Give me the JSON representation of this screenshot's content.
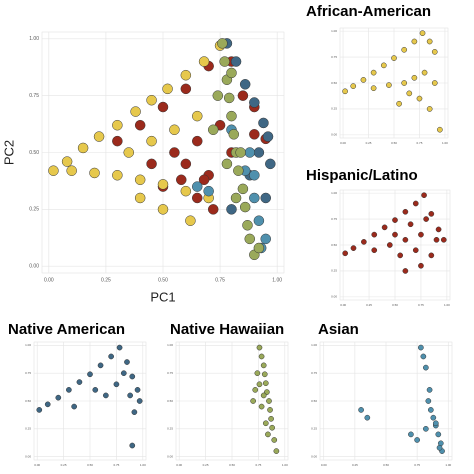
{
  "chart_data": [
    {
      "type": "scatter",
      "xlabel": "PC1",
      "ylabel": "PC2",
      "xlim": [
        -0.03,
        1.03
      ],
      "ylim": [
        -0.03,
        1.03
      ],
      "xticks": [
        {
          "value": 0,
          "label": "0.00"
        },
        0.25,
        {
          "value": 0.5,
          "label": "0.50"
        },
        0.75,
        {
          "value": 1,
          "label": "1.00"
        }
      ],
      "yticks": [
        {
          "value": 0,
          "label": "0.00"
        },
        0.25,
        {
          "value": 0.5,
          "label": "0.50"
        },
        0.75,
        {
          "value": 1,
          "label": "1.00"
        }
      ],
      "grid": true,
      "series": [
        {
          "color": "#9b2a1c",
          "x": [
            0.3,
            0.4,
            0.5,
            0.6,
            0.7,
            0.8,
            0.9,
            0.95,
            0.55,
            0.65,
            0.75,
            0.85,
            0.45,
            0.6,
            0.7,
            0.8,
            0.9,
            0.5,
            0.65,
            0.72,
            0.68,
            0.58
          ],
          "y": [
            0.55,
            0.62,
            0.7,
            0.78,
            0.88,
            0.9,
            0.7,
            0.56,
            0.5,
            0.55,
            0.62,
            0.75,
            0.45,
            0.45,
            0.4,
            0.5,
            0.58,
            0.35,
            0.3,
            0.25,
            0.38,
            0.38
          ]
        },
        {
          "color": "#e6c84c",
          "x": [
            0.02,
            0.08,
            0.15,
            0.22,
            0.3,
            0.38,
            0.45,
            0.52,
            0.6,
            0.68,
            0.75,
            0.1,
            0.2,
            0.3,
            0.4,
            0.5,
            0.6,
            0.35,
            0.45,
            0.55,
            0.65,
            0.7,
            0.5,
            0.4,
            0.62
          ],
          "y": [
            0.42,
            0.46,
            0.52,
            0.57,
            0.62,
            0.68,
            0.73,
            0.78,
            0.84,
            0.9,
            0.97,
            0.42,
            0.41,
            0.4,
            0.38,
            0.36,
            0.33,
            0.5,
            0.55,
            0.6,
            0.66,
            0.3,
            0.25,
            0.3,
            0.2
          ]
        },
        {
          "color": "#3f6784",
          "x": [
            0.78,
            0.82,
            0.86,
            0.9,
            0.94,
            0.96,
            0.92,
            0.88,
            0.8,
            0.95,
            0.97
          ],
          "y": [
            0.98,
            0.9,
            0.8,
            0.72,
            0.63,
            0.57,
            0.5,
            0.4,
            0.25,
            0.3,
            0.45
          ]
        },
        {
          "color": "#4f90ad",
          "x": [
            0.65,
            0.7,
            0.8,
            0.86,
            0.9,
            0.92,
            0.95,
            0.93,
            0.88,
            0.9
          ],
          "y": [
            0.35,
            0.33,
            0.6,
            0.42,
            0.3,
            0.2,
            0.12,
            0.08,
            0.5,
            0.4
          ]
        },
        {
          "color": "#9aa95a",
          "x": [
            0.76,
            0.77,
            0.78,
            0.79,
            0.8,
            0.81,
            0.82,
            0.83,
            0.85,
            0.86,
            0.87,
            0.88,
            0.9,
            0.92,
            0.8,
            0.84,
            0.74,
            0.72,
            0.78,
            0.82
          ],
          "y": [
            0.98,
            0.9,
            0.82,
            0.74,
            0.66,
            0.58,
            0.5,
            0.42,
            0.34,
            0.26,
            0.18,
            0.12,
            0.05,
            0.08,
            0.85,
            0.5,
            0.75,
            0.6,
            0.45,
            0.3
          ]
        }
      ]
    },
    {
      "type": "scatter",
      "title": "African-American",
      "xlim": [
        -0.03,
        1.03
      ],
      "ylim": [
        -0.03,
        1.03
      ],
      "xticks": [
        {
          "value": 0,
          "label": "0.00"
        },
        0.25,
        {
          "value": 0.5,
          "label": "0.50"
        },
        0.75,
        {
          "value": 1,
          "label": "1.00"
        }
      ],
      "yticks": [
        {
          "value": 0,
          "label": "0.00"
        },
        0.25,
        {
          "value": 0.5,
          "label": "0.50"
        },
        0.75,
        {
          "value": 1,
          "label": "1.00"
        }
      ],
      "grid": true,
      "series": [
        {
          "color": "#e6c84c",
          "x": [
            0.02,
            0.1,
            0.2,
            0.3,
            0.4,
            0.5,
            0.6,
            0.7,
            0.78,
            0.85,
            0.9,
            0.3,
            0.45,
            0.6,
            0.7,
            0.8,
            0.75,
            0.65,
            0.9,
            0.95,
            0.55,
            0.85
          ],
          "y": [
            0.42,
            0.47,
            0.53,
            0.6,
            0.67,
            0.74,
            0.82,
            0.9,
            0.98,
            0.9,
            0.8,
            0.45,
            0.48,
            0.5,
            0.55,
            0.6,
            0.35,
            0.4,
            0.5,
            0.05,
            0.3,
            0.25
          ]
        }
      ]
    },
    {
      "type": "scatter",
      "title": "Hispanic/Latino",
      "xlim": [
        -0.03,
        1.03
      ],
      "ylim": [
        -0.03,
        1.03
      ],
      "xticks": [
        {
          "value": 0,
          "label": "0.00"
        },
        0.25,
        {
          "value": 0.5,
          "label": "0.50"
        },
        0.75,
        {
          "value": 1,
          "label": "1.00"
        }
      ],
      "yticks": [
        {
          "value": 0,
          "label": "0.00"
        },
        0.25,
        {
          "value": 0.5,
          "label": "0.50"
        },
        0.75,
        {
          "value": 1,
          "label": "1.00"
        }
      ],
      "grid": true,
      "series": [
        {
          "color": "#9b2a1c",
          "x": [
            0.02,
            0.1,
            0.2,
            0.3,
            0.4,
            0.5,
            0.6,
            0.7,
            0.78,
            0.85,
            0.92,
            0.97,
            0.3,
            0.45,
            0.6,
            0.75,
            0.5,
            0.65,
            0.8,
            0.9,
            0.55,
            0.7,
            0.85,
            0.6,
            0.75
          ],
          "y": [
            0.42,
            0.47,
            0.53,
            0.6,
            0.67,
            0.74,
            0.82,
            0.9,
            0.98,
            0.8,
            0.65,
            0.55,
            0.45,
            0.5,
            0.55,
            0.6,
            0.6,
            0.7,
            0.75,
            0.55,
            0.4,
            0.45,
            0.4,
            0.25,
            0.3
          ]
        }
      ]
    },
    {
      "type": "scatter",
      "title": "Native American",
      "xlim": [
        -0.03,
        1.03
      ],
      "ylim": [
        -0.03,
        1.03
      ],
      "xticks": [
        {
          "value": 0,
          "label": "0.00"
        },
        0.25,
        {
          "value": 0.5,
          "label": "0.50"
        },
        0.75,
        {
          "value": 1,
          "label": "1.00"
        }
      ],
      "yticks": [
        {
          "value": 0,
          "label": "0.00"
        },
        0.25,
        {
          "value": 0.5,
          "label": "0.50"
        },
        0.75,
        {
          "value": 1,
          "label": "1.00"
        }
      ],
      "grid": true,
      "series": [
        {
          "color": "#3f6784",
          "x": [
            0.02,
            0.1,
            0.2,
            0.3,
            0.4,
            0.5,
            0.6,
            0.7,
            0.78,
            0.85,
            0.9,
            0.95,
            0.97,
            0.82,
            0.88,
            0.92,
            0.35,
            0.55,
            0.65,
            0.75,
            0.9
          ],
          "y": [
            0.42,
            0.47,
            0.53,
            0.6,
            0.67,
            0.74,
            0.82,
            0.9,
            0.98,
            0.85,
            0.72,
            0.6,
            0.5,
            0.75,
            0.55,
            0.4,
            0.45,
            0.6,
            0.55,
            0.65,
            0.1
          ]
        }
      ]
    },
    {
      "type": "scatter",
      "title": "Native Hawaiian",
      "xlim": [
        -0.03,
        1.03
      ],
      "ylim": [
        -0.03,
        1.03
      ],
      "xticks": [
        {
          "value": 0,
          "label": "0.00"
        },
        0.25,
        {
          "value": 0.5,
          "label": "0.50"
        },
        0.75,
        {
          "value": 1,
          "label": "1.00"
        }
      ],
      "yticks": [
        {
          "value": 0,
          "label": "0.00"
        },
        0.25,
        {
          "value": 0.5,
          "label": "0.50"
        },
        0.75,
        {
          "value": 1,
          "label": "1.00"
        }
      ],
      "grid": true,
      "series": [
        {
          "color": "#9aa95a",
          "x": [
            0.76,
            0.78,
            0.8,
            0.81,
            0.82,
            0.83,
            0.85,
            0.86,
            0.87,
            0.88,
            0.9,
            0.92,
            0.74,
            0.72,
            0.7,
            0.78,
            0.82,
            0.8,
            0.84,
            0.76
          ],
          "y": [
            0.98,
            0.9,
            0.82,
            0.74,
            0.66,
            0.58,
            0.5,
            0.42,
            0.34,
            0.26,
            0.15,
            0.05,
            0.75,
            0.6,
            0.5,
            0.45,
            0.3,
            0.55,
            0.2,
            0.65
          ]
        }
      ]
    },
    {
      "type": "scatter",
      "title": "Asian",
      "xlim": [
        -0.03,
        1.03
      ],
      "ylim": [
        -0.03,
        1.03
      ],
      "xticks": [
        {
          "value": 0,
          "label": "0.00"
        },
        0.25,
        {
          "value": 0.5,
          "label": "0.50"
        },
        0.75,
        {
          "value": 1,
          "label": "1.00"
        }
      ],
      "yticks": [
        {
          "value": 0,
          "label": "0.00"
        },
        0.25,
        {
          "value": 0.5,
          "label": "0.50"
        },
        0.75,
        {
          "value": 1,
          "label": "1.00"
        }
      ],
      "grid": true,
      "series": [
        {
          "color": "#4f90ad",
          "x": [
            0.78,
            0.8,
            0.82,
            0.85,
            0.84,
            0.86,
            0.88,
            0.9,
            0.92,
            0.94,
            0.95,
            0.93,
            0.3,
            0.35,
            0.7,
            0.75,
            0.82,
            0.9
          ],
          "y": [
            0.98,
            0.9,
            0.8,
            0.6,
            0.5,
            0.42,
            0.35,
            0.28,
            0.2,
            0.12,
            0.05,
            0.08,
            0.42,
            0.35,
            0.2,
            0.15,
            0.25,
            0.3
          ]
        }
      ]
    }
  ]
}
